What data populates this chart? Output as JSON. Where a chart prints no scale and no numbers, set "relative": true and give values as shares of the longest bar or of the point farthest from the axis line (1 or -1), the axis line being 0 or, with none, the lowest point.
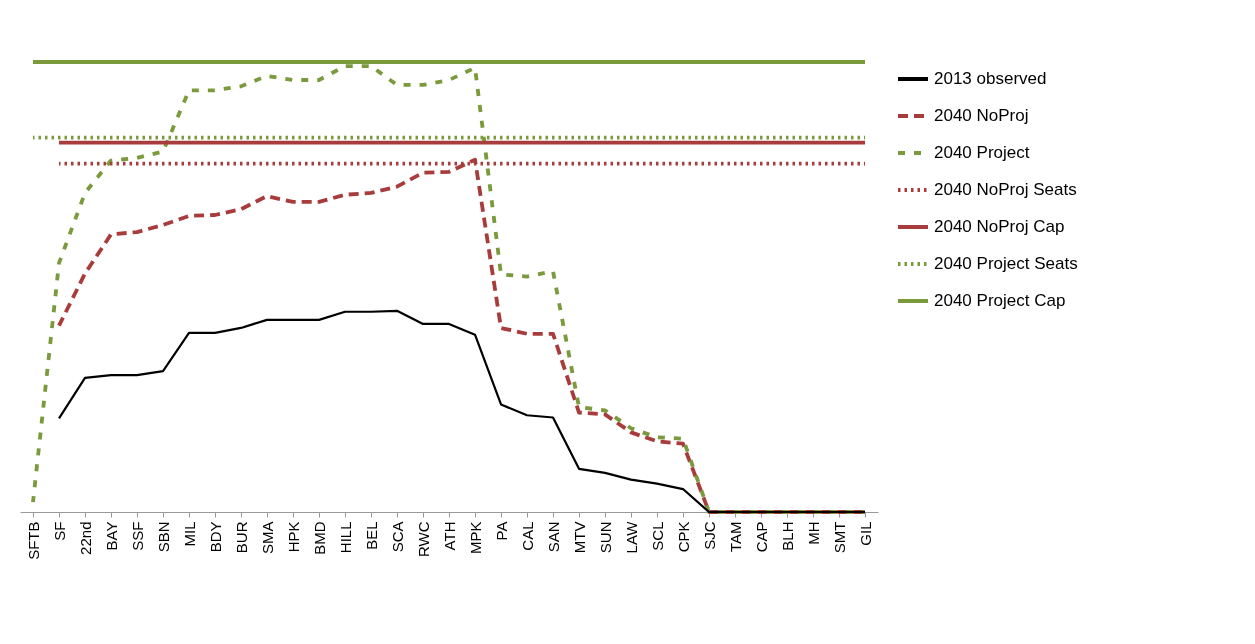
{
  "chart_data": {
    "type": "line",
    "relative": true,
    "legend": "right",
    "grid": false,
    "categories": [
      "SFTB",
      "SF",
      "22nd",
      "BAY",
      "SSF",
      "SBN",
      "MIL",
      "BDY",
      "BUR",
      "SMA",
      "HPK",
      "BMD",
      "HILL",
      "BEL",
      "SCA",
      "RWC",
      "ATH",
      "MPK",
      "PA",
      "CAL",
      "SAN",
      "MTV",
      "SUN",
      "LAW",
      "SCL",
      "CPK",
      "SJC",
      "TAM",
      "CAP",
      "BLH",
      "MH",
      "SMT",
      "GIL"
    ],
    "series": [
      {
        "name": "2013 observed",
        "color": "#000000",
        "line_style": "solid",
        "values": [
          null,
          0.208,
          0.298,
          0.304,
          0.304,
          0.313,
          0.398,
          0.398,
          0.409,
          0.427,
          0.427,
          0.427,
          0.445,
          0.445,
          0.447,
          0.418,
          0.418,
          0.394,
          0.239,
          0.215,
          0.21,
          0.096,
          0.087,
          0.072,
          0.063,
          0.051,
          0,
          0,
          0,
          0,
          0,
          0,
          0
        ]
      },
      {
        "name": "2040 NoProj",
        "color": "#a83c3c",
        "line_style": "dashed",
        "values": [
          null,
          0.414,
          0.53,
          0.617,
          0.622,
          0.638,
          0.658,
          0.66,
          0.673,
          0.702,
          0.689,
          0.689,
          0.705,
          0.709,
          0.723,
          0.754,
          0.756,
          0.783,
          0.409,
          0.396,
          0.396,
          0.221,
          0.217,
          0.177,
          0.157,
          0.152,
          0,
          0,
          0,
          0,
          0,
          0,
          0
        ]
      },
      {
        "name": "2040 Project",
        "color": "#7a9a3c",
        "line_style": "dashed",
        "values": [
          0.022,
          0.553,
          0.709,
          0.781,
          0.787,
          0.801,
          0.937,
          0.937,
          0.946,
          0.969,
          0.96,
          0.96,
          0.991,
          0.991,
          0.949,
          0.949,
          0.96,
          0.987,
          0.528,
          0.523,
          0.535,
          0.233,
          0.226,
          0.186,
          0.166,
          0.163,
          0,
          0,
          0,
          0,
          0,
          0,
          0
        ]
      },
      {
        "name": "2040 NoProj Seats",
        "color": "#a83c3c",
        "line_style": "dotted",
        "values": [
          null,
          0.774,
          0.774,
          0.774,
          0.774,
          0.774,
          0.774,
          0.774,
          0.774,
          0.774,
          0.774,
          0.774,
          0.774,
          0.774,
          0.774,
          0.774,
          0.774,
          0.774,
          0.774,
          0.774,
          0.774,
          0.774,
          0.774,
          0.774,
          0.774,
          0.774,
          0.774,
          0.774,
          0.774,
          0.774,
          0.774,
          0.774,
          0.774
        ]
      },
      {
        "name": "2040 NoProj Cap",
        "color": "#a83c3c",
        "line_style": "solid",
        "values": [
          null,
          0.821,
          0.821,
          0.821,
          0.821,
          0.821,
          0.821,
          0.821,
          0.821,
          0.821,
          0.821,
          0.821,
          0.821,
          0.821,
          0.821,
          0.821,
          0.821,
          0.821,
          0.821,
          0.821,
          0.821,
          0.821,
          0.821,
          0.821,
          0.821,
          0.821,
          0.821,
          0.821,
          0.821,
          0.821,
          0.821,
          0.821,
          0.821
        ]
      },
      {
        "name": "2040 Project Seats",
        "color": "#7a9a3c",
        "line_style": "dotted",
        "values": [
          0.832,
          0.832,
          0.832,
          0.832,
          0.832,
          0.832,
          0.832,
          0.832,
          0.832,
          0.832,
          0.832,
          0.832,
          0.832,
          0.832,
          0.832,
          0.832,
          0.832,
          0.832,
          0.832,
          0.832,
          0.832,
          0.832,
          0.832,
          0.832,
          0.832,
          0.832,
          0.832,
          0.832,
          0.832,
          0.832,
          0.832,
          0.832,
          0.832
        ]
      },
      {
        "name": "2040 Project Cap",
        "color": "#7a9a3c",
        "line_style": "solid",
        "values": [
          1,
          1,
          1,
          1,
          1,
          1,
          1,
          1,
          1,
          1,
          1,
          1,
          1,
          1,
          1,
          1,
          1,
          1,
          1,
          1,
          1,
          1,
          1,
          1,
          1,
          1,
          1,
          1,
          1,
          1,
          1,
          1,
          1
        ]
      }
    ]
  }
}
